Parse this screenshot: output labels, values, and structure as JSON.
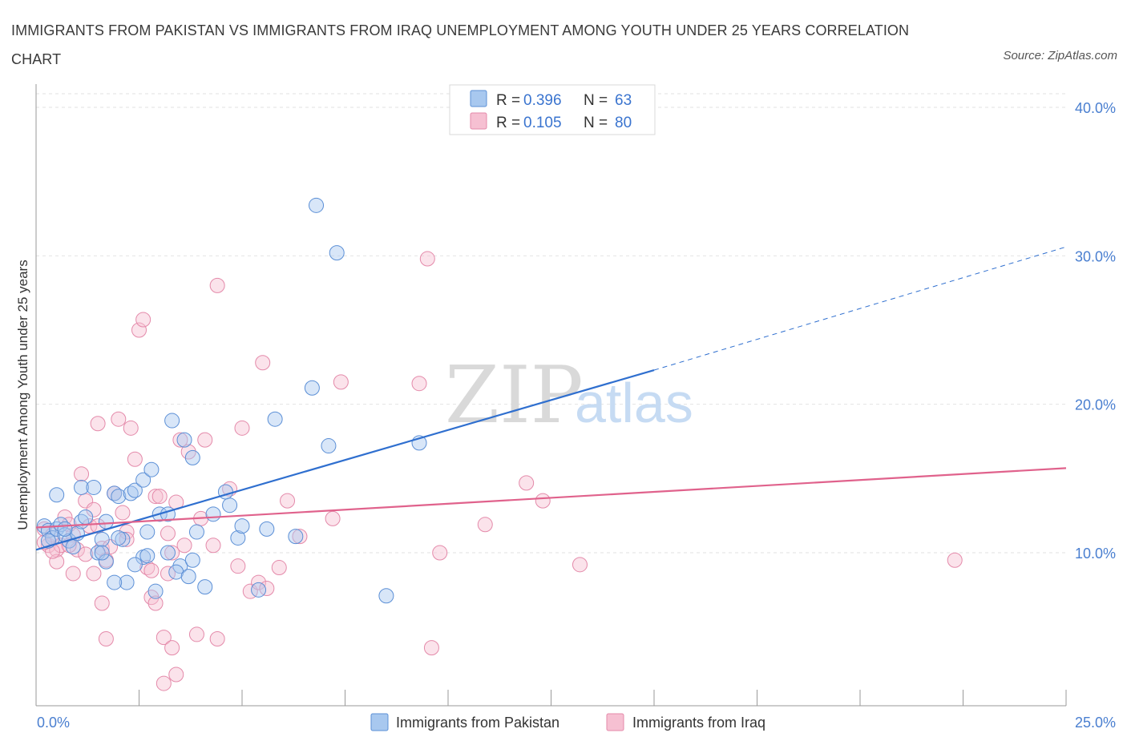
{
  "title": "IMMIGRANTS FROM PAKISTAN VS IMMIGRANTS FROM IRAQ UNEMPLOYMENT AMONG YOUTH UNDER 25 YEARS CORRELATION CHART",
  "source": "Source: ZipAtlas.com",
  "watermark": {
    "zip": "ZIP",
    "atlas": "atlas"
  },
  "legend_top": {
    "rows": [
      {
        "r_label": "R =",
        "r_value": "0.396",
        "n_label": "N =",
        "n_value": "63",
        "color": "#a8c8ef",
        "stroke": "#5b8fd6"
      },
      {
        "r_label": "R =",
        "r_value": "0.105",
        "n_label": "N =",
        "n_value": "80",
        "color": "#f6c0d2",
        "stroke": "#e48aaa"
      }
    ]
  },
  "chart_data": {
    "type": "scatter",
    "title": "IMMIGRANTS FROM PAKISTAN VS IMMIGRANTS FROM IRAQ UNEMPLOYMENT AMONG YOUTH UNDER 25 YEARS CORRELATION CHART",
    "xlabel": "",
    "ylabel": "Unemployment Among Youth under 25 years",
    "xlim": [
      0,
      25
    ],
    "ylim": [
      0,
      40
    ],
    "x_tick_labels": [
      "0.0%",
      "25.0%"
    ],
    "y_ticks": [
      10,
      20,
      30,
      40
    ],
    "y_tick_labels": [
      "10.0%",
      "20.0%",
      "30.0%",
      "40.0%"
    ],
    "grid": true,
    "legend_position": "bottom-center",
    "series": [
      {
        "name": "Immigrants from Pakistan",
        "color": "#a8c8ef",
        "stroke": "#5b8fd6",
        "line_color": "#2f6fcf",
        "trend": {
          "x0": 0,
          "y0": 10.2,
          "x1": 15,
          "y1": 22.3,
          "x_dash_end": 25,
          "y_dash_end": 30.6
        },
        "points": [
          [
            0.2,
            11.8
          ],
          [
            0.3,
            11.5
          ],
          [
            0.4,
            11.0
          ],
          [
            0.5,
            11.6
          ],
          [
            0.6,
            11.9
          ],
          [
            0.7,
            11.2
          ],
          [
            0.8,
            10.8
          ],
          [
            0.5,
            13.9
          ],
          [
            0.3,
            10.8
          ],
          [
            0.9,
            10.4
          ],
          [
            1.0,
            11.3
          ],
          [
            1.1,
            12.1
          ],
          [
            1.2,
            12.4
          ],
          [
            1.1,
            14.4
          ],
          [
            1.4,
            14.4
          ],
          [
            1.6,
            10.9
          ],
          [
            1.5,
            10.0
          ],
          [
            1.7,
            9.4
          ],
          [
            1.7,
            12.1
          ],
          [
            1.9,
            14.0
          ],
          [
            2.0,
            13.8
          ],
          [
            2.1,
            10.9
          ],
          [
            2.3,
            14.0
          ],
          [
            2.4,
            14.2
          ],
          [
            2.6,
            14.9
          ],
          [
            2.7,
            11.4
          ],
          [
            2.8,
            15.6
          ],
          [
            3.0,
            12.6
          ],
          [
            3.2,
            12.6
          ],
          [
            3.3,
            18.9
          ],
          [
            3.6,
            17.6
          ],
          [
            3.8,
            16.4
          ],
          [
            3.9,
            11.4
          ],
          [
            3.5,
            9.1
          ],
          [
            3.4,
            8.7
          ],
          [
            3.7,
            8.4
          ],
          [
            4.1,
            7.7
          ],
          [
            4.3,
            12.6
          ],
          [
            4.6,
            14.1
          ],
          [
            4.7,
            13.2
          ],
          [
            4.9,
            11.0
          ],
          [
            5.0,
            11.8
          ],
          [
            5.6,
            11.6
          ],
          [
            5.8,
            19.0
          ],
          [
            6.3,
            11.1
          ],
          [
            6.7,
            21.1
          ],
          [
            6.8,
            33.4
          ],
          [
            7.1,
            17.2
          ],
          [
            7.3,
            30.2
          ],
          [
            9.3,
            17.4
          ],
          [
            8.5,
            7.1
          ],
          [
            5.4,
            7.5
          ],
          [
            2.9,
            7.4
          ],
          [
            2.6,
            9.7
          ],
          [
            2.2,
            8.0
          ],
          [
            1.9,
            8.0
          ],
          [
            2.7,
            9.8
          ],
          [
            3.8,
            9.5
          ],
          [
            3.2,
            10.0
          ],
          [
            0.7,
            11.6
          ],
          [
            1.6,
            10.0
          ],
          [
            2.0,
            11.0
          ],
          [
            2.4,
            9.2
          ]
        ]
      },
      {
        "name": "Immigrants from Iraq",
        "color": "#f6c0d2",
        "stroke": "#e48aaa",
        "line_color": "#e0628c",
        "trend": {
          "x0": 0,
          "y0": 11.7,
          "x1": 25,
          "y1": 15.7
        },
        "points": [
          [
            0.2,
            11.6
          ],
          [
            0.3,
            10.5
          ],
          [
            0.4,
            11.2
          ],
          [
            0.5,
            10.2
          ],
          [
            0.6,
            10.5
          ],
          [
            0.7,
            12.4
          ],
          [
            0.8,
            11.9
          ],
          [
            0.9,
            11.2
          ],
          [
            1.0,
            10.2
          ],
          [
            1.1,
            15.3
          ],
          [
            1.2,
            13.5
          ],
          [
            1.3,
            11.8
          ],
          [
            1.4,
            12.9
          ],
          [
            1.5,
            18.7
          ],
          [
            1.6,
            10.3
          ],
          [
            1.7,
            9.5
          ],
          [
            1.8,
            10.4
          ],
          [
            1.9,
            14.0
          ],
          [
            2.0,
            19.0
          ],
          [
            2.1,
            12.7
          ],
          [
            2.2,
            11.4
          ],
          [
            2.3,
            18.4
          ],
          [
            2.4,
            16.3
          ],
          [
            2.5,
            25.0
          ],
          [
            2.6,
            25.7
          ],
          [
            2.7,
            9.0
          ],
          [
            2.8,
            8.8
          ],
          [
            2.9,
            13.8
          ],
          [
            3.0,
            13.8
          ],
          [
            3.1,
            4.3
          ],
          [
            3.2,
            11.3
          ],
          [
            3.3,
            10.0
          ],
          [
            3.4,
            13.4
          ],
          [
            3.5,
            17.6
          ],
          [
            3.6,
            10.5
          ],
          [
            3.7,
            16.8
          ],
          [
            3.9,
            4.5
          ],
          [
            4.0,
            12.3
          ],
          [
            4.1,
            17.6
          ],
          [
            4.3,
            10.5
          ],
          [
            4.4,
            28.0
          ],
          [
            4.7,
            14.3
          ],
          [
            4.9,
            9.1
          ],
          [
            5.0,
            18.4
          ],
          [
            5.2,
            7.4
          ],
          [
            5.4,
            8.0
          ],
          [
            5.5,
            22.8
          ],
          [
            5.9,
            9.0
          ],
          [
            6.1,
            13.5
          ],
          [
            6.4,
            11.1
          ],
          [
            7.2,
            12.3
          ],
          [
            7.4,
            21.5
          ],
          [
            9.5,
            29.8
          ],
          [
            9.3,
            21.4
          ],
          [
            9.8,
            10.0
          ],
          [
            10.9,
            11.9
          ],
          [
            11.9,
            14.7
          ],
          [
            12.3,
            13.5
          ],
          [
            13.2,
            9.2
          ],
          [
            22.3,
            9.5
          ],
          [
            0.5,
            9.4
          ],
          [
            0.9,
            8.6
          ],
          [
            1.4,
            8.6
          ],
          [
            1.6,
            6.6
          ],
          [
            1.7,
            4.2
          ],
          [
            2.8,
            7.0
          ],
          [
            2.9,
            6.6
          ],
          [
            3.3,
            3.6
          ],
          [
            3.4,
            1.8
          ],
          [
            3.1,
            1.2
          ],
          [
            4.4,
            4.2
          ],
          [
            9.6,
            3.6
          ],
          [
            5.6,
            7.6
          ],
          [
            0.4,
            10.1
          ],
          [
            0.2,
            10.7
          ],
          [
            0.8,
            10.5
          ],
          [
            1.5,
            11.8
          ],
          [
            2.2,
            10.9
          ],
          [
            1.2,
            9.9
          ],
          [
            3.2,
            8.6
          ]
        ]
      }
    ]
  },
  "bottom_legend": [
    {
      "label": "Immigrants from Pakistan",
      "color": "#a8c8ef",
      "stroke": "#5b8fd6"
    },
    {
      "label": "Immigrants from Iraq",
      "color": "#f6c0d2",
      "stroke": "#e48aaa"
    }
  ]
}
